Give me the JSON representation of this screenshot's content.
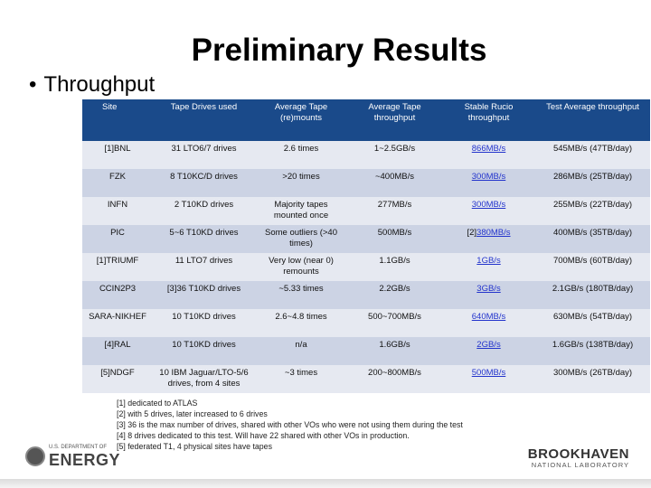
{
  "slide": {
    "title": "Preliminary Results",
    "bullet_symbol": "•",
    "bullet": "Throughput"
  },
  "table": {
    "headers": [
      "Site",
      "Tape Drives used",
      "Average Tape (re)mounts",
      "Average Tape throughput",
      "Stable Rucio throughput",
      "Test Average throughput"
    ],
    "rows": [
      {
        "site": "[1]BNL",
        "drives": "31 LTO6/7 drives",
        "remounts": "2.6 times",
        "tape_throughput": "1~2.5GB/s",
        "rucio": "866MB/s",
        "test_avg": "545MB/s (47TB/day)"
      },
      {
        "site": "FZK",
        "drives": "8 T10KC/D drives",
        "remounts": ">20 times",
        "tape_throughput": "~400MB/s",
        "rucio": "300MB/s",
        "test_avg": "286MB/s (25TB/day)"
      },
      {
        "site": "INFN",
        "drives": "2 T10KD drives",
        "remounts": "Majority tapes mounted once",
        "tape_throughput": "277MB/s",
        "rucio": "300MB/s",
        "test_avg": "255MB/s (22TB/day)"
      },
      {
        "site": "PIC",
        "drives": "5~6 T10KD drives",
        "remounts": "Some outliers (>40 times)",
        "tape_throughput": "500MB/s",
        "rucio_prefix": "[2]",
        "rucio": "380MB/s",
        "test_avg": "400MB/s (35TB/day)"
      },
      {
        "site": "[1]TRIUMF",
        "drives": "11 LTO7 drives",
        "remounts": "Very low (near 0) remounts",
        "tape_throughput": "1.1GB/s",
        "rucio": "1GB/s",
        "test_avg": "700MB/s (60TB/day)"
      },
      {
        "site": "CCIN2P3",
        "drives": "[3]36 T10KD drives",
        "remounts": "~5.33 times",
        "tape_throughput": "2.2GB/s",
        "rucio": "3GB/s",
        "test_avg": "2.1GB/s (180TB/day)"
      },
      {
        "site": "SARA-NIKHEF",
        "drives": "10 T10KD drives",
        "remounts": "2.6~4.8 times",
        "tape_throughput": "500~700MB/s",
        "rucio": "640MB/s",
        "test_avg": "630MB/s (54TB/day)"
      },
      {
        "site": "[4]RAL",
        "drives": "10 T10KD drives",
        "remounts": "n/a",
        "tape_throughput": "1.6GB/s",
        "rucio": "2GB/s",
        "test_avg": "1.6GB/s (138TB/day)"
      },
      {
        "site": "[5]NDGF",
        "drives": "10 IBM Jaguar/LTO-5/6 drives, from 4 sites",
        "remounts": "~3 times",
        "tape_throughput": "200~800MB/s",
        "rucio": "500MB/s",
        "test_avg": "300MB/s (26TB/day)"
      }
    ]
  },
  "footnotes": [
    "[1] dedicated to ATLAS",
    "[2] with 5 drives, later increased to 6 drives",
    "[3] 36 is the max number of drives, shared with other VOs who were not using them during the test",
    "[4] 8 drives dedicated to this test. Will have 22 shared with other VOs in production.",
    "[5] federated T1, 4 physical sites have tapes"
  ],
  "logos": {
    "doe_small": "U.S. DEPARTMENT OF",
    "doe_big": "ENERGY",
    "bnl_big": "BROOKHAVEN",
    "bnl_small": "NATIONAL LABORATORY"
  },
  "colors": {
    "header_bg": "#1a4a8a",
    "row_light": "#e6e9f1",
    "row_dark": "#ccd3e4",
    "link": "#2233cc"
  }
}
